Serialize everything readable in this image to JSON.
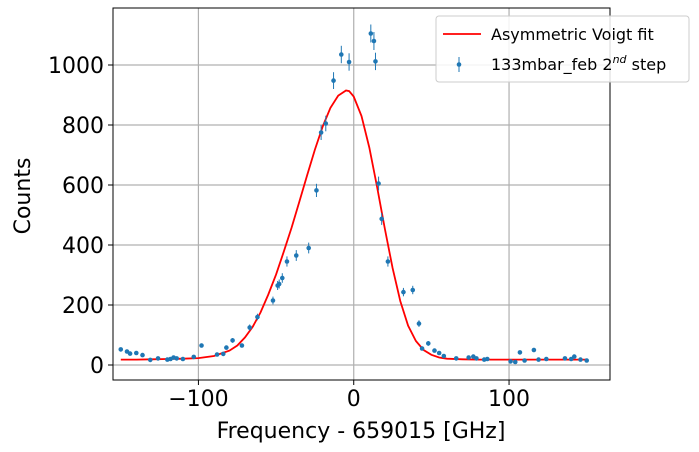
{
  "chart_data": {
    "type": "scatter",
    "title": "",
    "xlabel": "Frequency - 659015 [GHz]",
    "ylabel": "Counts",
    "xlim": [
      -155,
      165
    ],
    "ylim": [
      -50,
      1190
    ],
    "grid": true,
    "legend_position": "top-right",
    "x_ticks": [
      -100,
      0,
      100
    ],
    "x_tick_labels": [
      "−100",
      "0",
      "100"
    ],
    "y_ticks": [
      0,
      200,
      400,
      600,
      800,
      1000
    ],
    "y_tick_labels": [
      "0",
      "200",
      "400",
      "600",
      "800",
      "1000"
    ],
    "colors": {
      "fit": "#ff0000",
      "data": "#1f77b4",
      "grid": "#b0b0b0"
    },
    "series": [
      {
        "name": "133mbar_feb 2nd step",
        "legend_base": "133mbar_feb 2",
        "legend_sup": "nd",
        "legend_suffix": " step",
        "kind": "errorbar",
        "points": [
          {
            "x": -150,
            "y": 52,
            "err": 6
          },
          {
            "x": -146,
            "y": 45,
            "err": 6
          },
          {
            "x": -144,
            "y": 38,
            "err": 6
          },
          {
            "x": -140,
            "y": 40,
            "err": 6
          },
          {
            "x": -136,
            "y": 33,
            "err": 6
          },
          {
            "x": -131,
            "y": 17,
            "err": 5
          },
          {
            "x": -126,
            "y": 22,
            "err": 5
          },
          {
            "x": -120,
            "y": 18,
            "err": 5
          },
          {
            "x": -118,
            "y": 20,
            "err": 5
          },
          {
            "x": -116,
            "y": 25,
            "err": 5
          },
          {
            "x": -114,
            "y": 22,
            "err": 5
          },
          {
            "x": -110,
            "y": 20,
            "err": 5
          },
          {
            "x": -103,
            "y": 27,
            "err": 5
          },
          {
            "x": -98,
            "y": 65,
            "err": 7
          },
          {
            "x": -88,
            "y": 35,
            "err": 6
          },
          {
            "x": -84,
            "y": 37,
            "err": 6
          },
          {
            "x": -82,
            "y": 58,
            "err": 7
          },
          {
            "x": -78,
            "y": 82,
            "err": 8
          },
          {
            "x": -72,
            "y": 65,
            "err": 7
          },
          {
            "x": -67,
            "y": 125,
            "err": 10
          },
          {
            "x": -62,
            "y": 160,
            "err": 11
          },
          {
            "x": -52,
            "y": 215,
            "err": 13
          },
          {
            "x": -49,
            "y": 265,
            "err": 15
          },
          {
            "x": -48,
            "y": 270,
            "err": 15
          },
          {
            "x": -46,
            "y": 290,
            "err": 16
          },
          {
            "x": -43,
            "y": 345,
            "err": 17
          },
          {
            "x": -37,
            "y": 365,
            "err": 18
          },
          {
            "x": -29,
            "y": 390,
            "err": 18
          },
          {
            "x": -24,
            "y": 582,
            "err": 22
          },
          {
            "x": -21,
            "y": 775,
            "err": 25
          },
          {
            "x": -18,
            "y": 805,
            "err": 26
          },
          {
            "x": -13,
            "y": 948,
            "err": 28
          },
          {
            "x": -8,
            "y": 1035,
            "err": 29
          },
          {
            "x": -3,
            "y": 1010,
            "err": 29
          },
          {
            "x": 11,
            "y": 1105,
            "err": 30
          },
          {
            "x": 13,
            "y": 1080,
            "err": 30
          },
          {
            "x": 14,
            "y": 1012,
            "err": 29
          },
          {
            "x": 16,
            "y": 605,
            "err": 23
          },
          {
            "x": 18,
            "y": 487,
            "err": 20
          },
          {
            "x": 22,
            "y": 345,
            "err": 17
          },
          {
            "x": 32,
            "y": 243,
            "err": 14
          },
          {
            "x": 38,
            "y": 250,
            "err": 14
          },
          {
            "x": 42,
            "y": 138,
            "err": 11
          },
          {
            "x": 44,
            "y": 55,
            "err": 7
          },
          {
            "x": 48,
            "y": 72,
            "err": 8
          },
          {
            "x": 52,
            "y": 48,
            "err": 6
          },
          {
            "x": 55,
            "y": 40,
            "err": 6
          },
          {
            "x": 58,
            "y": 30,
            "err": 5
          },
          {
            "x": 66,
            "y": 22,
            "err": 5
          },
          {
            "x": 74,
            "y": 25,
            "err": 5
          },
          {
            "x": 77,
            "y": 28,
            "err": 5
          },
          {
            "x": 79,
            "y": 22,
            "err": 5
          },
          {
            "x": 84,
            "y": 18,
            "err": 5
          },
          {
            "x": 86,
            "y": 20,
            "err": 5
          },
          {
            "x": 101,
            "y": 12,
            "err": 4
          },
          {
            "x": 104,
            "y": 10,
            "err": 4
          },
          {
            "x": 107,
            "y": 42,
            "err": 6
          },
          {
            "x": 110,
            "y": 15,
            "err": 4
          },
          {
            "x": 116,
            "y": 50,
            "err": 7
          },
          {
            "x": 119,
            "y": 18,
            "err": 5
          },
          {
            "x": 124,
            "y": 20,
            "err": 5
          },
          {
            "x": 136,
            "y": 22,
            "err": 5
          },
          {
            "x": 140,
            "y": 20,
            "err": 5
          },
          {
            "x": 142,
            "y": 28,
            "err": 5
          },
          {
            "x": 146,
            "y": 18,
            "err": 5
          },
          {
            "x": 150,
            "y": 15,
            "err": 4
          }
        ]
      },
      {
        "name": "Asymmetric Voigt fit",
        "kind": "line",
        "x": [
          -150,
          -140,
          -130,
          -120,
          -110,
          -100,
          -90,
          -80,
          -75,
          -70,
          -65,
          -60,
          -55,
          -50,
          -45,
          -40,
          -35,
          -30,
          -25,
          -20,
          -15,
          -10,
          -5,
          -3,
          0,
          5,
          10,
          15,
          20,
          25,
          30,
          35,
          40,
          45,
          50,
          55,
          60,
          70,
          80,
          90,
          100,
          110,
          120,
          130,
          140,
          150
        ],
        "y": [
          18,
          18,
          19,
          20,
          21,
          23,
          30,
          48,
          65,
          92,
          128,
          175,
          235,
          302,
          378,
          458,
          545,
          632,
          718,
          795,
          857,
          898,
          915,
          913,
          895,
          830,
          725,
          595,
          455,
          323,
          213,
          131,
          80,
          50,
          34,
          25,
          21,
          19,
          18,
          18,
          18,
          18,
          18,
          18,
          18,
          18
        ]
      }
    ]
  }
}
